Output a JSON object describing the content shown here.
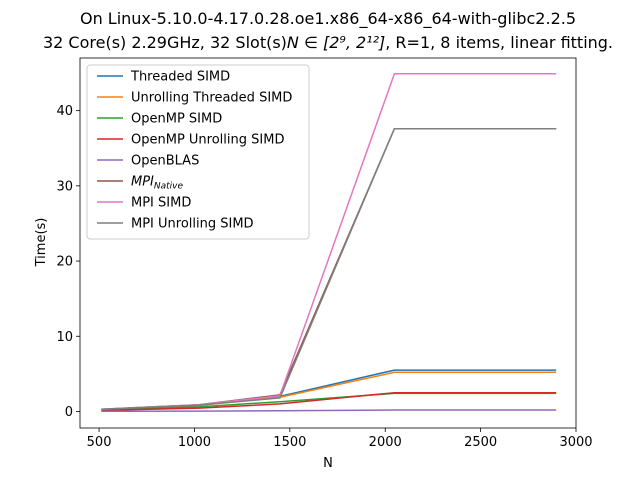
{
  "chart_data": {
    "type": "line",
    "title_line1": "On Linux-5.10.0-4.17.0.28.oe1.x86_64-x86_64-with-glibc2.2.5",
    "title_line2_prefix": "32 Core(s) 2.29GHz, 32 Slot(s)",
    "title_line2_math": "N ∈ [2⁹, 2¹²]",
    "title_line2_suffix": ", R=1, 8 items, linear fitting.",
    "xlabel": "N",
    "ylabel": "Time(s)",
    "xlim": [
      400,
      3000
    ],
    "ylim": [
      -2.2,
      47
    ],
    "xticks": [
      500,
      1000,
      1500,
      2000,
      2500,
      3000
    ],
    "yticks": [
      0,
      10,
      20,
      30,
      40
    ],
    "grid": false,
    "legend_position": "top-left",
    "x": [
      512,
      1024,
      1448,
      2048,
      2896
    ],
    "series": [
      {
        "name": "Threaded SIMD",
        "color": "#1f77b4",
        "values": [
          0.25,
          0.8,
          2.0,
          5.5,
          5.5
        ]
      },
      {
        "name": "Unrolling Threaded SIMD",
        "color": "#ff7f0e",
        "values": [
          0.25,
          0.8,
          1.9,
          5.2,
          5.2
        ]
      },
      {
        "name": "OpenMP SIMD",
        "color": "#2ca02c",
        "values": [
          0.2,
          0.6,
          1.3,
          2.4,
          2.4
        ]
      },
      {
        "name": "OpenMP Unrolling SIMD",
        "color": "#d62728",
        "values": [
          0.15,
          0.45,
          1.0,
          2.5,
          2.5
        ]
      },
      {
        "name": "OpenBLAS",
        "color": "#9467bd",
        "values": [
          0.02,
          0.05,
          0.1,
          0.2,
          0.2
        ]
      },
      {
        "name": "MPI_Native",
        "label_main": "MPI",
        "label_sub": "Native",
        "color": "#8c564b",
        "values": [
          0.3,
          0.9,
          2.2,
          37.6,
          37.6
        ]
      },
      {
        "name": "MPI SIMD",
        "color": "#e377c2",
        "values": [
          0.3,
          0.9,
          2.1,
          44.9,
          44.9
        ]
      },
      {
        "name": "MPI Unrolling SIMD",
        "color": "#7f7f7f",
        "values": [
          0.3,
          0.85,
          1.8,
          37.6,
          37.6
        ]
      }
    ]
  }
}
